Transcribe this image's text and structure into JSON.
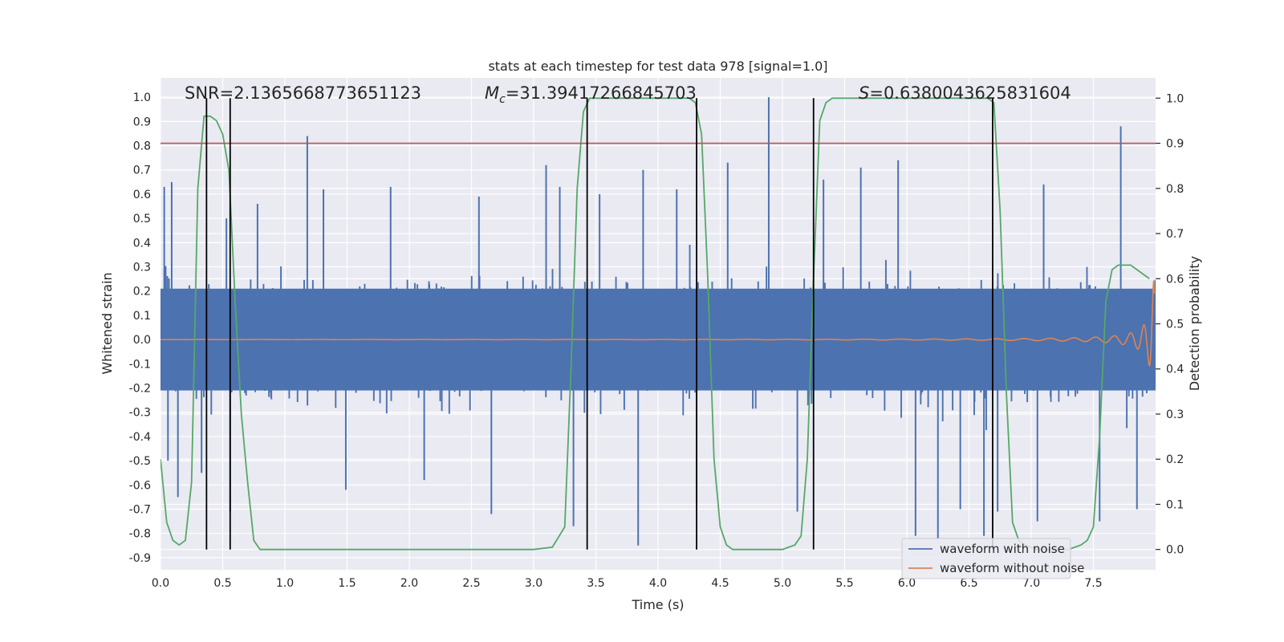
{
  "chart_data": {
    "type": "line",
    "title": "stats at each timestep for test data 978 [signal=1.0]",
    "xlabel": "Time (s)",
    "ylabel": "Whitened strain",
    "ylabel_right": "Detection probability",
    "xlim": [
      0.0,
      8.0
    ],
    "ylim": [
      -0.95,
      1.08
    ],
    "ylim_right": [
      -0.045,
      1.045
    ],
    "x_ticks": [
      "0.0",
      "0.5",
      "1.0",
      "1.5",
      "2.0",
      "2.5",
      "3.0",
      "3.5",
      "4.0",
      "4.5",
      "5.0",
      "5.5",
      "6.0",
      "6.5",
      "7.0",
      "7.5"
    ],
    "y_ticks": [
      "1.0",
      "0.9",
      "0.8",
      "0.7",
      "0.6",
      "0.5",
      "0.4",
      "0.3",
      "0.2",
      "0.1",
      "0.0",
      "-0.1",
      "-0.2",
      "-0.3",
      "-0.4",
      "-0.5",
      "-0.6",
      "-0.7",
      "-0.8",
      "-0.9"
    ],
    "y_right_ticks": [
      "1.0",
      "0.9",
      "0.8",
      "0.7",
      "0.6",
      "0.5",
      "0.4",
      "0.3",
      "0.2",
      "0.1",
      "0.0"
    ],
    "grid": true,
    "legend_placement": "lower-right",
    "annotations": {
      "snr": "SNR=2.1365668773651123",
      "mc": "=31.39417266845703",
      "mc_symbol": "M",
      "mc_sub": "c",
      "s": "=0.6380043625831604",
      "s_symbol": "S"
    },
    "threshold_right": 0.9,
    "vertical_lines_x": [
      0.37,
      0.56,
      3.43,
      4.31,
      5.25,
      6.69
    ],
    "series": [
      {
        "name": "waveform with noise",
        "color": "#4c72b0",
        "axis": "left",
        "envelope_typical": 0.45,
        "spikes": [
          [
            0.03,
            0.63
          ],
          [
            0.06,
            -0.5
          ],
          [
            0.09,
            0.65
          ],
          [
            0.14,
            -0.65
          ],
          [
            0.33,
            -0.55
          ],
          [
            0.53,
            0.5
          ],
          [
            0.56,
            -0.71
          ],
          [
            0.78,
            0.56
          ],
          [
            1.18,
            0.84
          ],
          [
            1.31,
            0.62
          ],
          [
            1.49,
            -0.62
          ],
          [
            1.85,
            0.63
          ],
          [
            2.12,
            -0.58
          ],
          [
            2.56,
            0.59
          ],
          [
            2.66,
            -0.72
          ],
          [
            3.1,
            0.72
          ],
          [
            3.21,
            0.63
          ],
          [
            3.32,
            -0.77
          ],
          [
            3.53,
            0.6
          ],
          [
            3.84,
            -0.85
          ],
          [
            3.88,
            0.7
          ],
          [
            4.15,
            0.62
          ],
          [
            4.31,
            -0.68
          ],
          [
            4.56,
            0.73
          ],
          [
            4.89,
            1.0
          ],
          [
            5.12,
            -0.71
          ],
          [
            5.33,
            0.66
          ],
          [
            5.63,
            0.71
          ],
          [
            5.93,
            0.74
          ],
          [
            6.07,
            -0.81
          ],
          [
            6.25,
            -0.82
          ],
          [
            6.43,
            -0.7
          ],
          [
            6.62,
            -0.81
          ],
          [
            6.73,
            -0.71
          ],
          [
            7.05,
            -0.75
          ],
          [
            7.1,
            0.64
          ],
          [
            7.55,
            -0.75
          ],
          [
            7.72,
            0.88
          ],
          [
            7.85,
            -0.7
          ]
        ]
      },
      {
        "name": "waveform without noise",
        "color": "#dd8452",
        "axis": "left",
        "chirp_peak_amplitude": 0.28,
        "chirp_end_x": 8.0
      },
      {
        "name": "detection probability",
        "color": "#55a868",
        "axis": "right",
        "x": [
          0.0,
          0.05,
          0.1,
          0.15,
          0.2,
          0.25,
          0.3,
          0.35,
          0.4,
          0.45,
          0.5,
          0.55,
          0.6,
          0.65,
          0.7,
          0.75,
          0.8,
          0.85,
          0.9,
          1.0,
          2.0,
          3.0,
          3.15,
          3.25,
          3.3,
          3.35,
          3.4,
          3.45,
          3.5,
          3.55,
          3.6,
          4.25,
          4.3,
          4.35,
          4.4,
          4.45,
          4.5,
          4.55,
          4.6,
          4.65,
          4.7,
          5.0,
          5.1,
          5.15,
          5.2,
          5.25,
          5.3,
          5.35,
          5.4,
          5.45,
          6.65,
          6.7,
          6.75,
          6.8,
          6.85,
          6.9,
          6.95,
          7.05,
          7.3,
          7.4,
          7.45,
          7.5,
          7.55,
          7.6,
          7.65,
          7.7,
          7.8,
          7.95
        ],
        "y": [
          0.2,
          0.06,
          0.02,
          0.01,
          0.02,
          0.15,
          0.8,
          0.96,
          0.96,
          0.95,
          0.92,
          0.84,
          0.55,
          0.3,
          0.15,
          0.02,
          0.0,
          0.0,
          0.0,
          0.0,
          0.0,
          0.0,
          0.005,
          0.05,
          0.4,
          0.8,
          0.97,
          1.0,
          1.0,
          1.0,
          1.0,
          1.0,
          0.99,
          0.92,
          0.6,
          0.2,
          0.05,
          0.01,
          0.0,
          0.0,
          0.0,
          0.0,
          0.01,
          0.03,
          0.2,
          0.6,
          0.95,
          0.99,
          1.0,
          1.0,
          1.0,
          0.99,
          0.75,
          0.35,
          0.06,
          0.02,
          0.01,
          0.0,
          0.0,
          0.01,
          0.02,
          0.05,
          0.25,
          0.55,
          0.62,
          0.63,
          0.63,
          0.6
        ]
      }
    ]
  }
}
